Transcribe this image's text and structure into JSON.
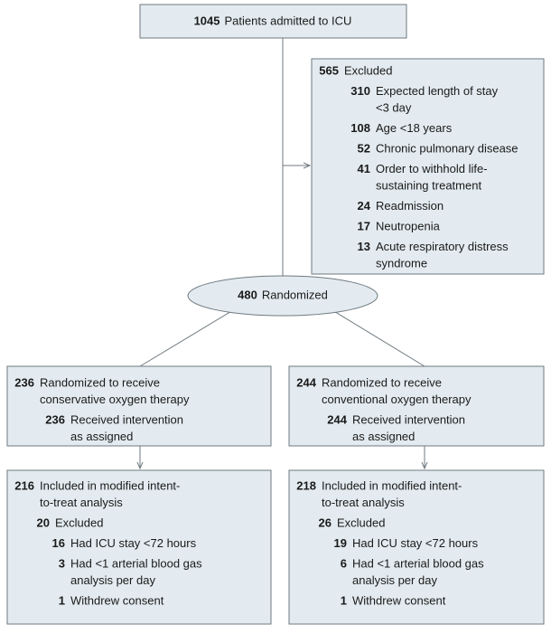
{
  "admitted": {
    "count": 1045,
    "label": "Patients admitted to ICU"
  },
  "excluded": {
    "count": 565,
    "label": "Excluded",
    "reasons": [
      {
        "count": 310,
        "lines": [
          "Expected length of stay",
          "<3 day"
        ]
      },
      {
        "count": 108,
        "lines": [
          "Age <18 years"
        ]
      },
      {
        "count": 52,
        "lines": [
          "Chronic pulmonary disease"
        ]
      },
      {
        "count": 41,
        "lines": [
          "Order to withhold life-",
          "sustaining treatment"
        ]
      },
      {
        "count": 24,
        "lines": [
          "Readmission"
        ]
      },
      {
        "count": 17,
        "lines": [
          "Neutropenia"
        ]
      },
      {
        "count": 13,
        "lines": [
          "Acute respiratory distress",
          "syndrome"
        ]
      }
    ]
  },
  "randomized": {
    "count": 480,
    "label": "Randomized"
  },
  "arms": [
    {
      "randomized": {
        "count": 236,
        "lines": [
          "Randomized to receive",
          "conservative oxygen therapy"
        ]
      },
      "received": {
        "count": 236,
        "lines": [
          "Received intervention",
          "as assigned"
        ]
      },
      "analyzed": {
        "count": 216,
        "lines": [
          "Included in modified intent-",
          "to-treat analysis"
        ]
      },
      "excluded": {
        "count": 20,
        "label": "Excluded",
        "reasons": [
          {
            "count": 16,
            "lines": [
              "Had ICU stay <72 hours"
            ]
          },
          {
            "count": 3,
            "lines": [
              "Had <1 arterial blood gas",
              "analysis per day"
            ]
          },
          {
            "count": 1,
            "lines": [
              "Withdrew consent"
            ]
          }
        ]
      }
    },
    {
      "randomized": {
        "count": 244,
        "lines": [
          "Randomized to receive",
          "conventional oxygen therapy"
        ]
      },
      "received": {
        "count": 244,
        "lines": [
          "Received intervention",
          "as assigned"
        ]
      },
      "analyzed": {
        "count": 218,
        "lines": [
          "Included in modified intent-",
          "to-treat analysis"
        ]
      },
      "excluded": {
        "count": 26,
        "label": "Excluded",
        "reasons": [
          {
            "count": 19,
            "lines": [
              "Had ICU stay <72 hours"
            ]
          },
          {
            "count": 6,
            "lines": [
              "Had <1 arterial blood gas",
              "analysis per day"
            ]
          },
          {
            "count": 1,
            "lines": [
              "Withdrew consent"
            ]
          }
        ]
      }
    }
  ]
}
